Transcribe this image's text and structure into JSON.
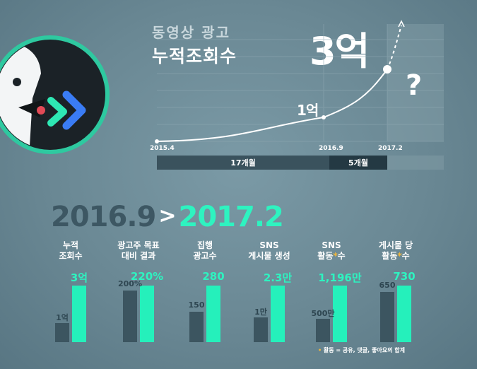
{
  "header": {
    "subtitle": "동영상 광고",
    "title": "누적조회수",
    "big_value": "3억",
    "question": "?",
    "mid_value": "1억"
  },
  "timeline": {
    "dates": [
      "2015.4",
      "2016.9",
      "2017.2"
    ],
    "segments": [
      "17개월",
      "5개월"
    ]
  },
  "period": {
    "from": "2016.9",
    "arrow": ">",
    "to": "2017.2"
  },
  "chart_data": [
    {
      "type": "line",
      "x": [
        "2015.4",
        "2016.9",
        "2017.2"
      ],
      "series": [
        {
          "values": [
            0,
            1,
            3
          ]
        }
      ],
      "unit": "억",
      "annotations": [
        "1억",
        "3억",
        "?"
      ]
    },
    {
      "type": "bar",
      "categories": [
        [
          "누적",
          "조회수"
        ],
        [
          "광고주 목표",
          "대비 결과"
        ],
        [
          "집행",
          "광고수"
        ],
        [
          "SNS",
          "게시물 생성"
        ],
        [
          "SNS",
          "활동*수"
        ],
        [
          "게시물 당",
          "활동*수"
        ]
      ],
      "series": [
        {
          "values": [
            1,
            200,
            150,
            1,
            500,
            650
          ],
          "labels": [
            "1억",
            "200%",
            "150",
            "1만",
            "500만",
            "650"
          ]
        },
        {
          "values": [
            3,
            220,
            280,
            2.3,
            1196,
            730
          ],
          "labels": [
            "3억",
            "220%",
            "280",
            "2.3만",
            "1,196만",
            "730"
          ]
        }
      ]
    }
  ],
  "footnote": "* 활동 = 공유, 댓글, 좋아요의 합계",
  "colors": {
    "accent": "#25f0bb",
    "before": "#3c5560",
    "note_dot": "#f2b63a"
  }
}
